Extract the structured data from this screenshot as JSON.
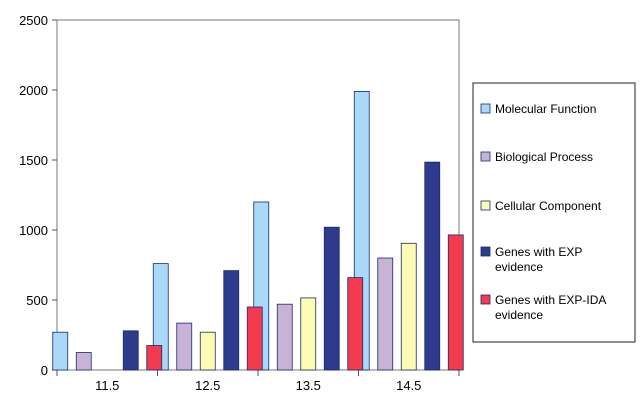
{
  "chart_data": {
    "type": "bar",
    "categories": [
      "11.5",
      "12.5",
      "13.5",
      "14.5"
    ],
    "series": [
      {
        "name": "Molecular Function",
        "color": "#a9d8f8",
        "values": [
          270,
          760,
          1200,
          1990
        ]
      },
      {
        "name": "Biological Process",
        "color": "#c7b3d6",
        "values": [
          125,
          335,
          470,
          800
        ]
      },
      {
        "name": "Cellular Component",
        "color": "#fbfbb4",
        "values": [
          0,
          270,
          515,
          905
        ]
      },
      {
        "name": "Genes with EXP evidence",
        "color": "#2e3a8c",
        "values": [
          280,
          710,
          1020,
          1485
        ]
      },
      {
        "name": "Genes with EXP-IDA evidence",
        "color": "#f23b4f",
        "values": [
          175,
          450,
          660,
          965
        ]
      }
    ],
    "legend_lines": [
      [
        "Molecular Function"
      ],
      [
        "Biological Process"
      ],
      [
        "Cellular Component"
      ],
      [
        "Genes with EXP",
        "evidence"
      ],
      [
        "Genes with EXP-IDA",
        "evidence"
      ]
    ],
    "title": "",
    "xlabel": "",
    "ylabel": "",
    "ylim": [
      0,
      2500
    ],
    "yticks": [
      0,
      500,
      1000,
      1500,
      2000,
      2500
    ],
    "grid": false,
    "legend_position": "right"
  }
}
